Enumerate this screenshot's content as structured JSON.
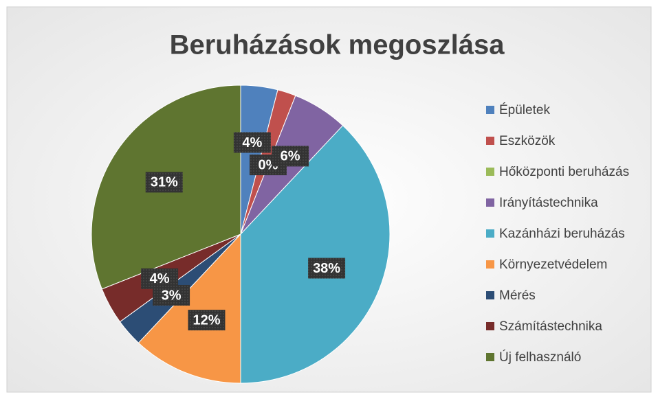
{
  "chart_data": {
    "type": "pie",
    "title": "Beruházások megoszlása",
    "categories": [
      "Épületek",
      "Eszközök",
      "Hőközponti beruházás",
      "Irányítástechnika",
      "Kazánházi beruházás",
      "Környezetvédelem",
      "Mérés",
      "Számítástechnika",
      "Új felhasználó"
    ],
    "values": [
      4,
      2,
      0,
      6,
      38,
      12,
      3,
      4,
      31
    ],
    "value_labels": [
      "4%",
      null,
      "0%",
      "6%",
      "38%",
      "12%",
      "3%",
      "4%",
      "31%"
    ],
    "colors": [
      "#4f81bd",
      "#c0504d",
      "#9bbb59",
      "#8064a2",
      "#4bacc6",
      "#f79646",
      "#2c4d75",
      "#772c2a",
      "#5f7530"
    ],
    "legend": "right"
  }
}
